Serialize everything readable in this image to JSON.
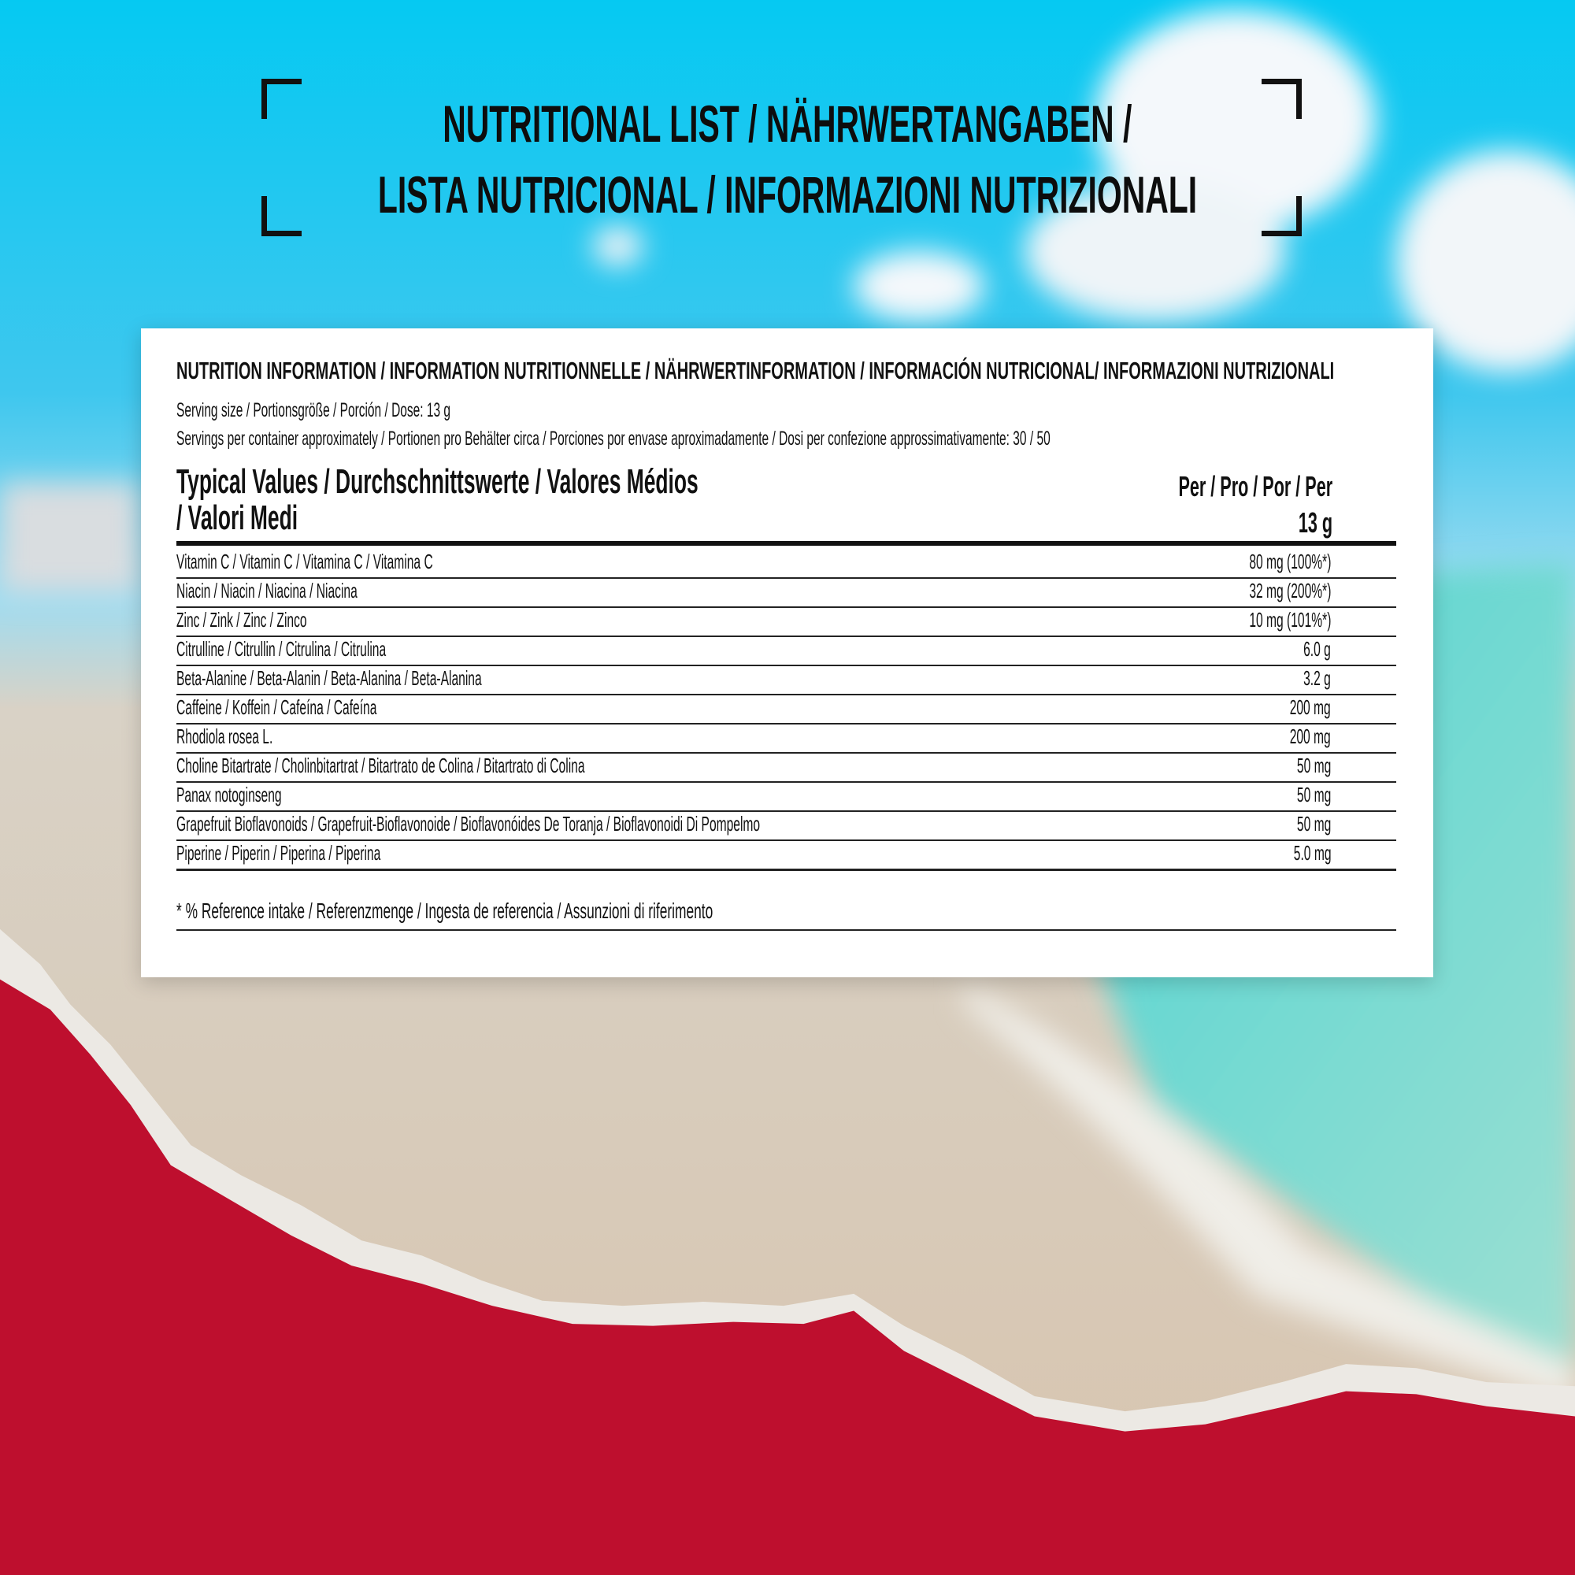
{
  "header": {
    "title_line1": "NUTRITIONAL LIST / NÄHRWERTANGABEN /",
    "title_line2": "LISTA NUTRICIONAL / INFORMAZIONI NUTRIZIONALI"
  },
  "card": {
    "heading": "NUTRITION INFORMATION / INFORMATION NUTRITIONNELLE / NÄHRWERTINFORMATION / INFORMACIÓN NUTRICIONAL/ INFORMAZIONI NUTRIZIONALI",
    "serving_size": "Serving size / Portionsgröße / Porción / Dose: 13 g",
    "servings_per_container": "Servings per container approximately / Portionen pro Behälter circa / Porciones por envase aproximadamente / Dosi per confezione approssimativamente: 30 / 50",
    "col_label_line1": "Typical Values / Durchschnittswerte / Valores Médios",
    "col_label_line2": "/ Valori Medi",
    "col_per_line1": "Per / Pro / Por / Per",
    "col_per_line2": "13 g",
    "rows": [
      {
        "name": "Vitamin C / Vitamin C / Vitamina C / Vitamina C",
        "value": "80 mg (100%*)"
      },
      {
        "name": "Niacin / Niacin / Niacina / Niacina",
        "value": "32 mg (200%*)"
      },
      {
        "name": "Zinc / Zink / Zinc / Zinco",
        "value": "10 mg (101%*)"
      },
      {
        "name": "Citrulline / Citrullin / Citrulina / Citrulina",
        "value": "6.0 g"
      },
      {
        "name": "Beta-Alanine / Beta-Alanin / Beta-Alanina / Beta-Alanina",
        "value": "3.2 g"
      },
      {
        "name": "Caffeine / Koffein / Cafeína / Cafeína",
        "value": "200 mg"
      },
      {
        "name": "Rhodiola rosea L.",
        "value": "200 mg"
      },
      {
        "name": "Choline Bitartrate / Cholinbitartrat / Bitartrato de Colina / Bitartrato di Colina",
        "value": "50 mg"
      },
      {
        "name": "Panax notoginseng",
        "value": "50 mg"
      },
      {
        "name": "Grapefruit Bioflavonoids / Grapefruit-Bioflavonoide / Bioflavonóides De Toranja / Bioflavonoidi Di Pompelmo",
        "value": "50 mg"
      },
      {
        "name": "Piperine / Piperin / Piperina / Piperina",
        "value": "5.0 mg"
      }
    ],
    "footnote": "* % Reference intake / Referenzmenge / Ingesta de referencia / Assunzioni di riferimento"
  },
  "colors": {
    "accent_red": "#BE0F2E",
    "sky": "#1EC8F0",
    "text": "#111111"
  }
}
